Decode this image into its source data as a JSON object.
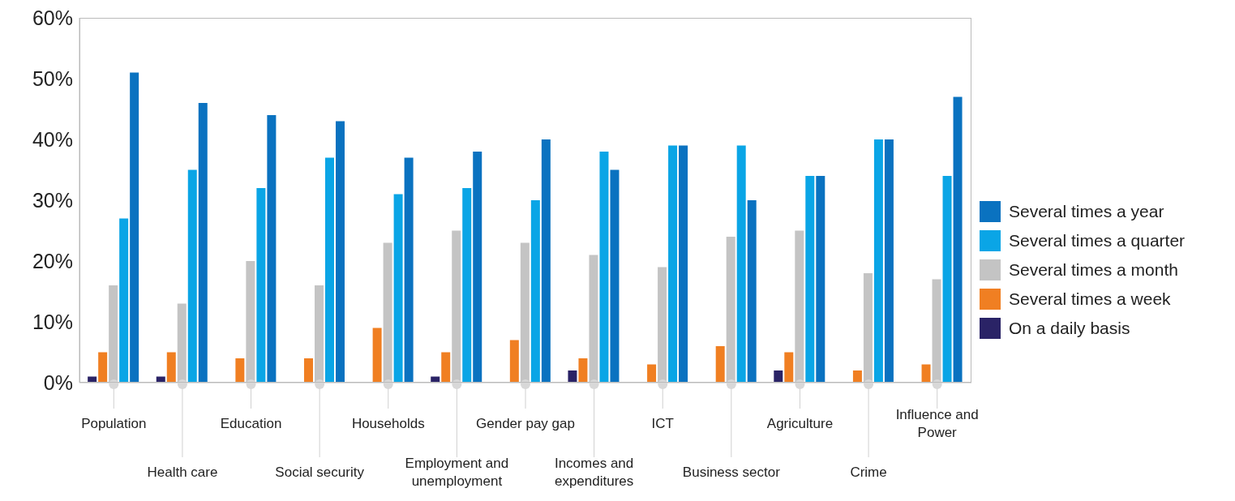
{
  "chart_data": {
    "type": "bar",
    "categories": [
      "Population",
      "Health care",
      "Education",
      "Social security",
      "Households",
      "Employment and unemployment",
      "Gender pay gap",
      "Incomes and expenditures",
      "ICT",
      "Business sector",
      "Agriculture",
      "Crime",
      "Influence and Power"
    ],
    "series": [
      {
        "name": "On a daily basis",
        "color": "#2a2366",
        "values": [
          1,
          1,
          0,
          0,
          0,
          1,
          0,
          2,
          0,
          0,
          2,
          0,
          0
        ]
      },
      {
        "name": "Several times a week",
        "color": "#f07f22",
        "values": [
          5,
          5,
          4,
          4,
          9,
          5,
          7,
          4,
          3,
          6,
          5,
          2,
          3
        ]
      },
      {
        "name": "Several times a month",
        "color": "#c4c4c4",
        "values": [
          16,
          13,
          20,
          16,
          23,
          25,
          23,
          21,
          19,
          24,
          25,
          18,
          17
        ]
      },
      {
        "name": "Several times a quarter",
        "color": "#0aa5e6",
        "values": [
          27,
          35,
          32,
          37,
          31,
          32,
          30,
          38,
          39,
          39,
          34,
          40,
          34
        ]
      },
      {
        "name": "Several times a year",
        "color": "#0a72c0",
        "values": [
          51,
          46,
          44,
          43,
          37,
          38,
          40,
          35,
          39,
          30,
          34,
          40,
          47
        ]
      }
    ],
    "ylim": [
      0,
      60
    ],
    "yticks": [
      {
        "value": 0,
        "label": "0%"
      },
      {
        "value": 10,
        "label": "10%"
      },
      {
        "value": 20,
        "label": "20%"
      },
      {
        "value": 30,
        "label": "30%"
      },
      {
        "value": 40,
        "label": "40%"
      },
      {
        "value": 50,
        "label": "50%"
      },
      {
        "value": 60,
        "label": "60%"
      }
    ],
    "grid": false,
    "legend": "right"
  }
}
